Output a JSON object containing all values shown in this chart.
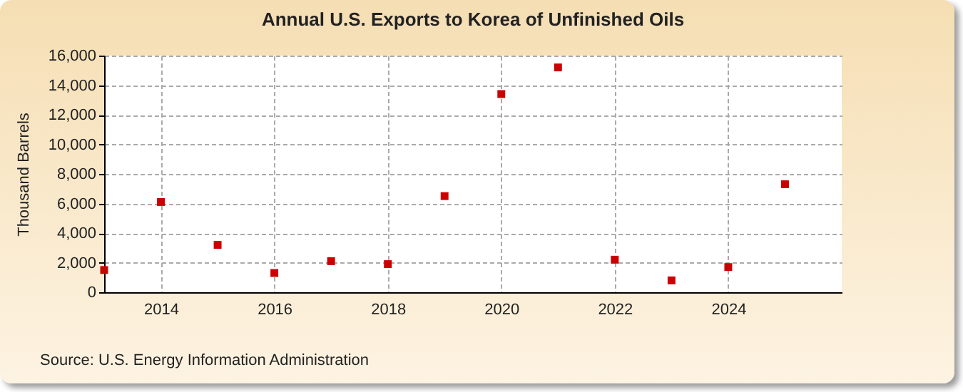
{
  "chart_data": {
    "type": "scatter",
    "title": "Annual U.S. Exports to Korea of Unfinished Oils",
    "ylabel": "Thousand Barrels",
    "x": [
      2013,
      2014,
      2015,
      2016,
      2017,
      2018,
      2019,
      2020,
      2021,
      2022,
      2023,
      2024,
      2025
    ],
    "series": [
      {
        "color": "#cc0000",
        "values": [
          1500,
          6100,
          3200,
          1300,
          2100,
          1900,
          6500,
          13400,
          15200,
          2200,
          800,
          1700,
          7300
        ]
      }
    ],
    "xlim": [
      2013,
      2026
    ],
    "xticks": [
      2014,
      2016,
      2018,
      2020,
      2022,
      2024
    ],
    "ylim": [
      0,
      16000
    ],
    "yticks": [
      0,
      {
        "value": 2000,
        "label": "2,000"
      },
      {
        "value": 4000,
        "label": "4,000"
      },
      {
        "value": 6000,
        "label": "6,000"
      },
      {
        "value": 8000,
        "label": "8,000"
      },
      {
        "value": 10000,
        "label": "10,000"
      },
      {
        "value": 12000,
        "label": "12,000"
      },
      {
        "value": 14000,
        "label": "14,000"
      },
      {
        "value": 16000,
        "label": "16,000"
      }
    ],
    "grid": true,
    "marker": "square",
    "annotations": [
      "Source: U.S. Energy Information Administration"
    ]
  }
}
